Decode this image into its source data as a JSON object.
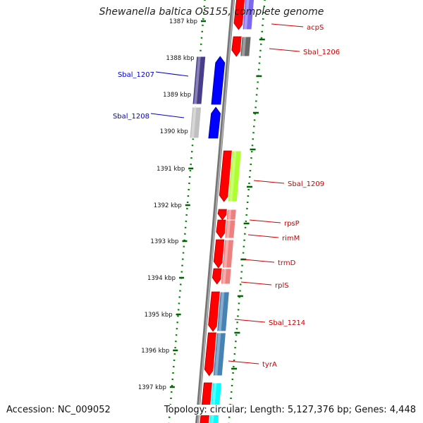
{
  "title": "Shewanella baltica OS155, complete genome",
  "footer": {
    "accession": "Accession: NC_009052",
    "topology": "Topology: circular; Length: 5,127,376 bp; Genes: 4,448"
  },
  "colors": {
    "forward_label": "#cc0000",
    "reverse_label": "#0000cc",
    "backbone": "#777777",
    "ruler_dots": "#008000",
    "tick_marks": "#006400"
  },
  "ruler": [
    {
      "label": "1387 kbp"
    },
    {
      "label": "1388 kbp"
    },
    {
      "label": "1389 kbp"
    },
    {
      "label": "1390 kbp"
    },
    {
      "label": "1391 kbp"
    },
    {
      "label": "1392 kbp"
    },
    {
      "label": "1393 kbp"
    },
    {
      "label": "1394 kbp"
    },
    {
      "label": "1395 kbp"
    },
    {
      "label": "1396 kbp"
    },
    {
      "label": "1397 kbp"
    }
  ],
  "genes": [
    {
      "name": "acpS",
      "strand": "forward",
      "cog_color": "#7b68ee"
    },
    {
      "name": "Sbal_1206",
      "strand": "forward",
      "cog_color": "#696969"
    },
    {
      "name": "Sbal_1207",
      "strand": "reverse",
      "cog_color": "#483d8b"
    },
    {
      "name": "Sbal_1208",
      "strand": "reverse",
      "cog_color": "#c0c0c0"
    },
    {
      "name": "Sbal_1209",
      "strand": "forward",
      "cog_color": "#adff2f"
    },
    {
      "name": "rpsP",
      "strand": "forward",
      "cog_color": "#f08080"
    },
    {
      "name": "rimM",
      "strand": "forward",
      "cog_color": "#f08080"
    },
    {
      "name": "trmD",
      "strand": "forward",
      "cog_color": "#f08080"
    },
    {
      "name": "rplS",
      "strand": "forward",
      "cog_color": "#f08080"
    },
    {
      "name": "Sbal_1214",
      "strand": "forward",
      "cog_color": "#4682b4"
    },
    {
      "name": "tyrA",
      "strand": "forward",
      "cog_color": "#4682b4"
    },
    {
      "name": "",
      "strand": "forward",
      "cog_color": "#00ffff"
    }
  ]
}
